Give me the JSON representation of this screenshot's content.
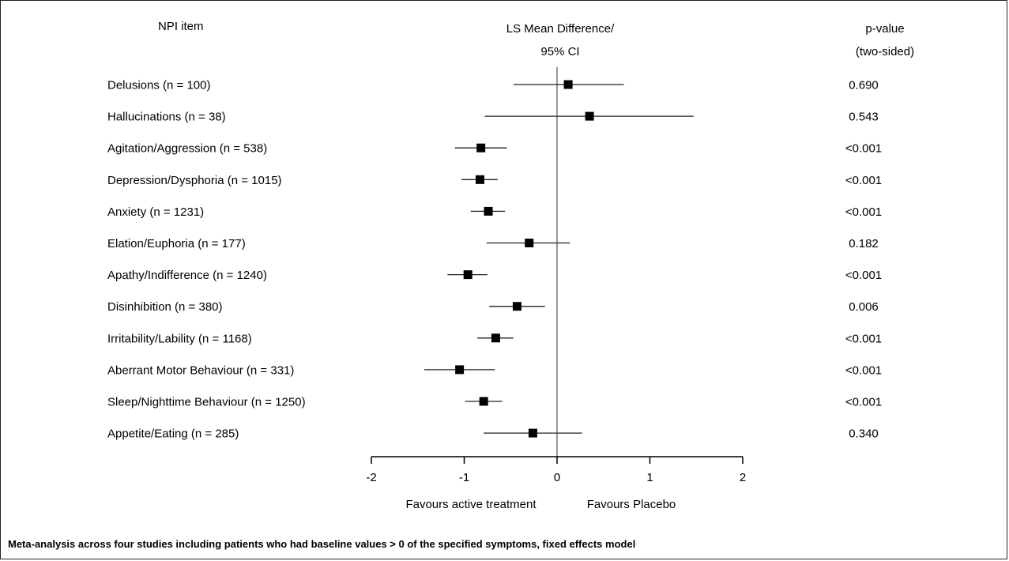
{
  "header": {
    "item_label": "NPI item",
    "ci_line1": "LS Mean Difference/",
    "ci_line2": "95% CI",
    "p_line1": "p-value",
    "p_line2": "(two-sided)"
  },
  "chart_data": {
    "type": "forest",
    "xlim": [
      -2,
      2
    ],
    "xticks": [
      -2,
      -1,
      0,
      1,
      2
    ],
    "reference_line": 0,
    "xlabel_left": "Favours active treatment",
    "xlabel_right": "Favours Placebo",
    "rows": [
      {
        "label": "Delusions (n = 100)",
        "mean": 0.12,
        "lo": -0.47,
        "hi": 0.72,
        "p": "0.690"
      },
      {
        "label": "Hallucinations (n = 38)",
        "mean": 0.35,
        "lo": -0.78,
        "hi": 1.47,
        "p": "0.543"
      },
      {
        "label": "Agitation/Aggression (n = 538)",
        "mean": -0.82,
        "lo": -1.1,
        "hi": -0.54,
        "p": "<0.001"
      },
      {
        "label": "Depression/Dysphoria (n = 1015)",
        "mean": -0.83,
        "lo": -1.03,
        "hi": -0.64,
        "p": "<0.001"
      },
      {
        "label": "Anxiety (n = 1231)",
        "mean": -0.74,
        "lo": -0.93,
        "hi": -0.56,
        "p": "<0.001"
      },
      {
        "label": "Elation/Euphoria (n = 177)",
        "mean": -0.3,
        "lo": -0.76,
        "hi": 0.14,
        "p": "0.182"
      },
      {
        "label": "Apathy/Indifference (n = 1240)",
        "mean": -0.96,
        "lo": -1.18,
        "hi": -0.75,
        "p": "<0.001"
      },
      {
        "label": "Disinhibition (n = 380)",
        "mean": -0.43,
        "lo": -0.73,
        "hi": -0.13,
        "p": "0.006"
      },
      {
        "label": "Irritability/Lability (n = 1168)",
        "mean": -0.66,
        "lo": -0.86,
        "hi": -0.47,
        "p": "<0.001"
      },
      {
        "label": "Aberrant Motor Behaviour (n = 331)",
        "mean": -1.05,
        "lo": -1.43,
        "hi": -0.67,
        "p": "<0.001"
      },
      {
        "label": "Sleep/Nighttime Behaviour (n = 1250)",
        "mean": -0.79,
        "lo": -0.99,
        "hi": -0.59,
        "p": "<0.001"
      },
      {
        "label": "Appetite/Eating (n = 285)",
        "mean": -0.26,
        "lo": -0.79,
        "hi": 0.27,
        "p": "0.340"
      }
    ]
  },
  "footnote": "Meta-analysis across four studies including patients who had baseline values > 0 of the specified symptoms, fixed effects model"
}
